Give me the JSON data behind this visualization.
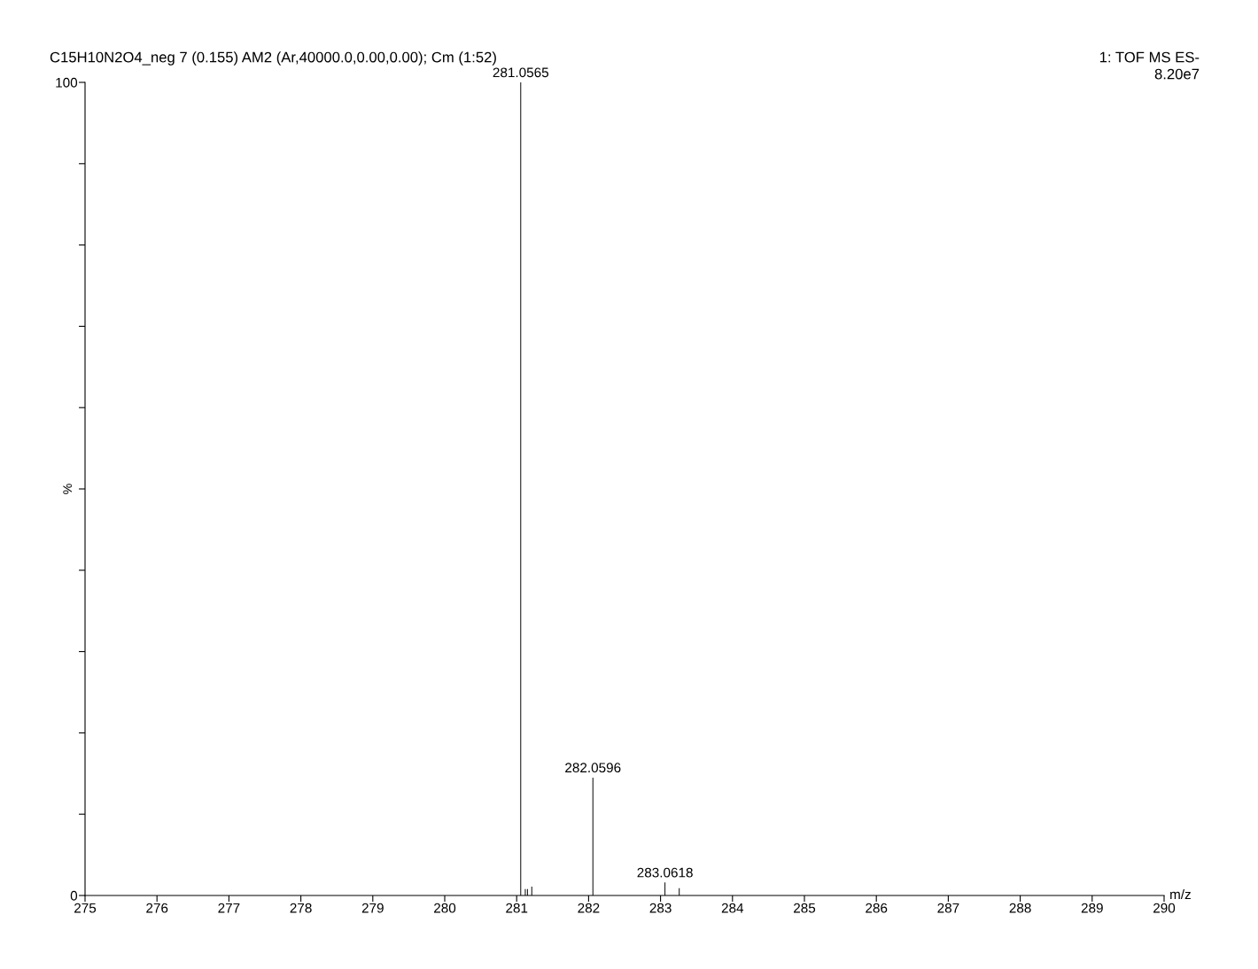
{
  "chart_data": {
    "type": "bar",
    "title": "C15H10N2O4_neg 7 (0.155) AM2 (Ar,40000.0,0.00,0.00); Cm (1:52)",
    "xlabel": "m/z",
    "ylabel": "%",
    "annotations": [
      "1: TOF MS ES-",
      "8.20e7",
      {
        "text": "281.0565",
        "x": 281.0565,
        "y": 100
      },
      {
        "text": "282.0596",
        "x": 282.0596,
        "y": 14.5
      },
      {
        "text": "283.0618",
        "x": 283.0618,
        "y": 1.6
      }
    ],
    "x": [
      281.0565,
      281.12,
      281.15,
      281.21,
      282.0596,
      283.0618,
      283.26
    ],
    "values": [
      100,
      0.8,
      0.8,
      1.1,
      14.5,
      1.6,
      0.9
    ],
    "color": "#000000",
    "xlim": [
      275,
      290
    ],
    "xticks": [
      275,
      276,
      277,
      278,
      279,
      280,
      281,
      282,
      283,
      284,
      285,
      286,
      287,
      288,
      289,
      290
    ],
    "ylim": [
      0,
      100
    ],
    "yticks": [
      0,
      {
        "value": 10,
        "label": null
      },
      {
        "value": 20,
        "label": null
      },
      {
        "value": 30,
        "label": null
      },
      {
        "value": 40,
        "label": null
      },
      {
        "value": 50,
        "label": null
      },
      {
        "value": 60,
        "label": null
      },
      {
        "value": 70,
        "label": null
      },
      {
        "value": 80,
        "label": null
      },
      {
        "value": 90,
        "label": null
      },
      100
    ],
    "grid": false
  }
}
